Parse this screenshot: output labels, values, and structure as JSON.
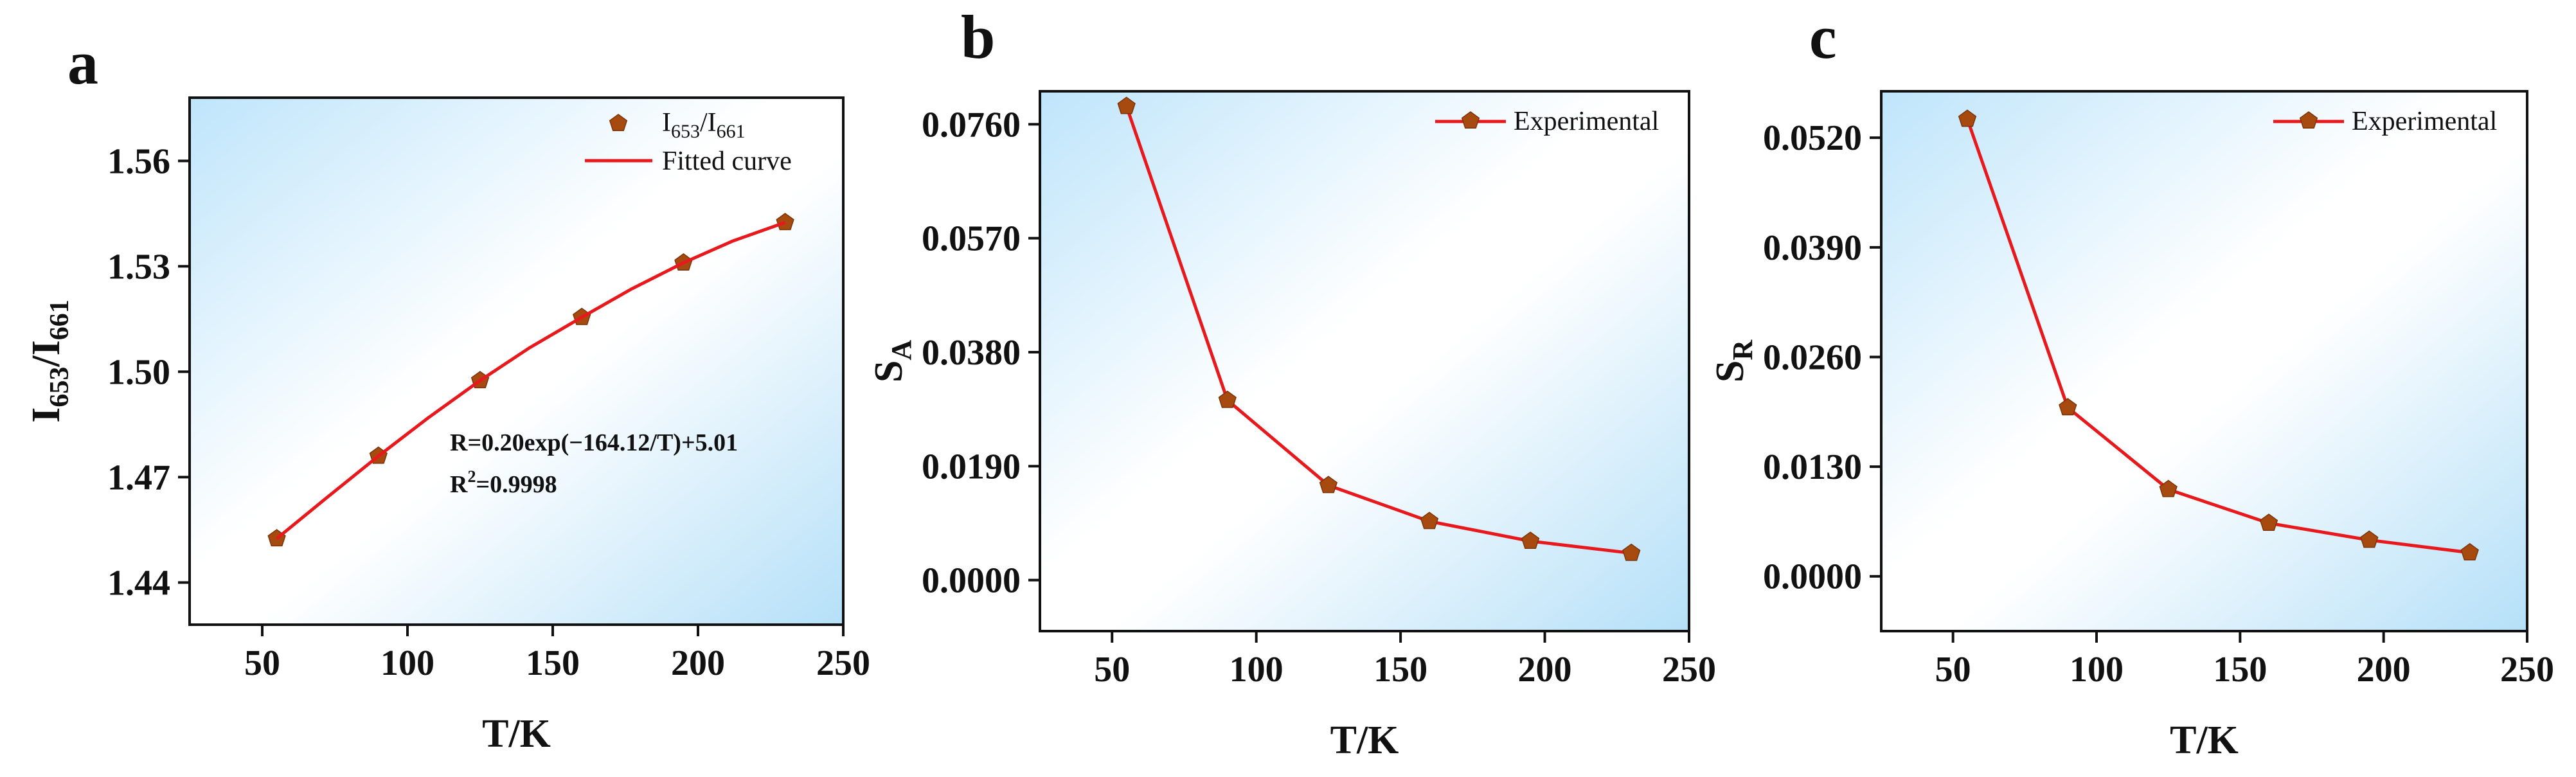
{
  "chart_data": [
    {
      "panel": "a",
      "type": "scatter",
      "xlabel": "T/K",
      "ylabel": {
        "base": "I",
        "sub1": "653",
        "mid": "/I",
        "sub2": "661"
      },
      "xlim": [
        25,
        250
      ],
      "ylim": [
        1.428,
        1.578
      ],
      "xticks": [
        50,
        100,
        150,
        200,
        250
      ],
      "yticks": [
        1.44,
        1.47,
        1.5,
        1.53,
        1.56
      ],
      "ytick_labels": [
        "1.44",
        "1.47",
        "1.50",
        "1.53",
        "1.56"
      ],
      "series": [
        {
          "name": "I653/I661",
          "marker": "pentagon",
          "color": "#a64a10",
          "x": [
            55,
            90,
            125,
            160,
            195,
            230
          ],
          "y": [
            1.4525,
            1.476,
            1.4975,
            1.5155,
            1.531,
            1.5425
          ]
        },
        {
          "name": "Fitted curve",
          "style": "line",
          "color": "#e8191c",
          "x": [
            55,
            72,
            90,
            107,
            125,
            142,
            160,
            177,
            195,
            212,
            230
          ],
          "y": [
            1.4525,
            1.464,
            1.476,
            1.4868,
            1.4975,
            1.5068,
            1.5155,
            1.5235,
            1.531,
            1.5372,
            1.5425
          ]
        }
      ],
      "legend": {
        "position": "top-right",
        "entries": [
          {
            "base": "I",
            "sub1": "653",
            "mid": "/I",
            "sub2": "661",
            "kind": "marker"
          },
          {
            "label": "Fitted curve",
            "kind": "line"
          }
        ]
      },
      "annotations": {
        "equation": "R=0.20exp(−164.12/T)+5.01",
        "r2_prefix": "R",
        "r2_sup": "2",
        "r2_value": "=0.9998"
      }
    },
    {
      "panel": "b",
      "type": "line",
      "xlabel": "T/K",
      "ylabel": {
        "base": "S",
        "sub": "A"
      },
      "xlim": [
        25,
        250
      ],
      "ylim": [
        -0.0085,
        0.0815
      ],
      "xticks": [
        50,
        100,
        150,
        200,
        250
      ],
      "yticks": [
        0.0,
        0.019,
        0.038,
        0.057,
        0.076
      ],
      "ytick_labels": [
        "0.0000",
        "0.0190",
        "0.0380",
        "0.0570",
        "0.0760"
      ],
      "series": [
        {
          "name": "Experimental",
          "marker": "pentagon",
          "color": "#e8191c",
          "marker_color": "#a64a10",
          "x": [
            55,
            90,
            125,
            160,
            195,
            230
          ],
          "y": [
            0.079,
            0.03,
            0.0158,
            0.0098,
            0.0065,
            0.0045
          ]
        }
      ],
      "legend": {
        "position": "top-right",
        "entries": [
          {
            "label": "Experimental",
            "kind": "line-marker"
          }
        ]
      }
    },
    {
      "panel": "c",
      "type": "line",
      "xlabel": "T/K",
      "ylabel": {
        "base": "S",
        "sub": "R"
      },
      "xlim": [
        25,
        250
      ],
      "ylim": [
        -0.0065,
        0.0575
      ],
      "xticks": [
        50,
        100,
        150,
        200,
        250
      ],
      "yticks": [
        0.0,
        0.013,
        0.026,
        0.039,
        0.052
      ],
      "ytick_labels": [
        "0.0000",
        "0.0130",
        "0.0260",
        "0.0390",
        "0.0520"
      ],
      "series": [
        {
          "name": "Experimental",
          "marker": "pentagon",
          "color": "#e8191c",
          "marker_color": "#a64a10",
          "x": [
            55,
            90,
            125,
            160,
            195,
            230
          ],
          "y": [
            0.0542,
            0.02,
            0.0103,
            0.0063,
            0.0043,
            0.0028
          ]
        }
      ],
      "legend": {
        "position": "top-right",
        "entries": [
          {
            "label": "Experimental",
            "kind": "line-marker"
          }
        ]
      }
    }
  ]
}
